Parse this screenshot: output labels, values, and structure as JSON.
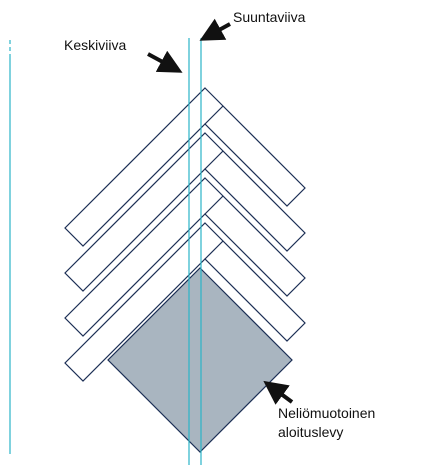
{
  "labels": {
    "suuntaviiva": "Suuntaviiva",
    "keskiviiva": "Keskiviiva",
    "aloituslevy": [
      "Neliömuotoinen",
      "aloituslevy"
    ]
  }
}
